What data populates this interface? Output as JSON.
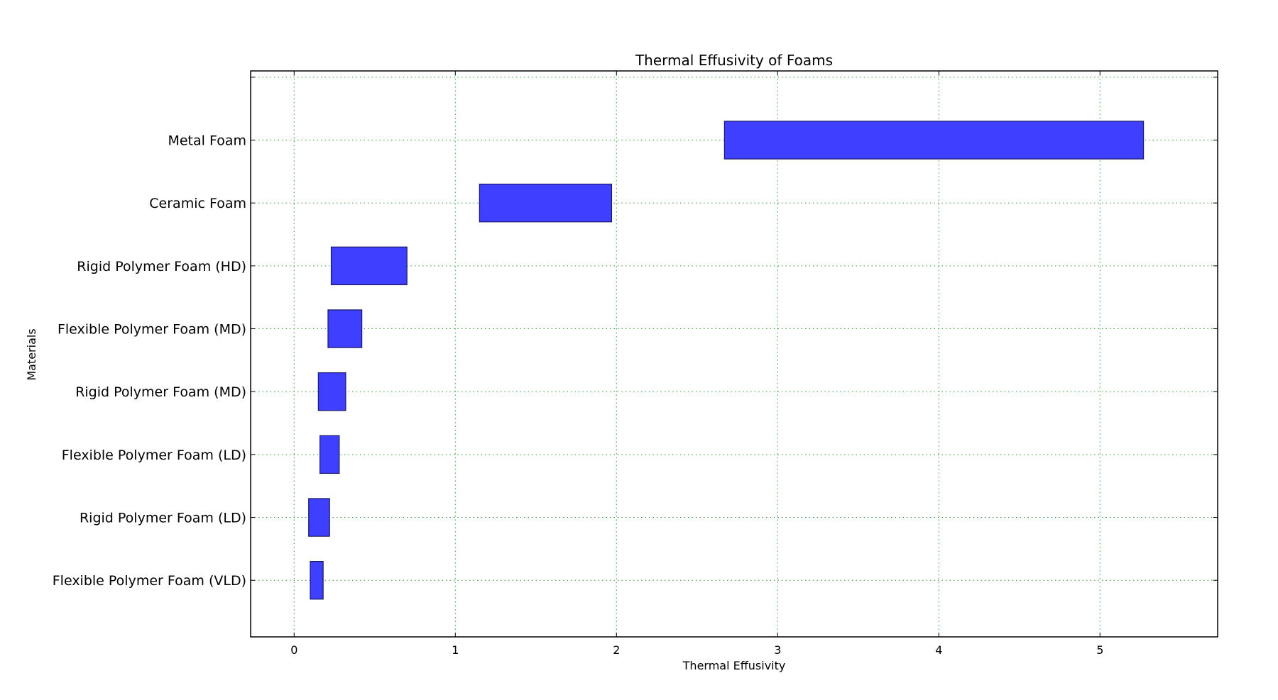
{
  "chart_data": {
    "type": "bar",
    "orientation": "horizontal",
    "bar_style": "floating-range",
    "title": "Thermal Effusivity of Foams",
    "xlabel": "Thermal Effusivity",
    "ylabel": "Materials",
    "xlim": [
      -0.27,
      5.73
    ],
    "xticks": [
      0,
      1,
      2,
      3,
      4,
      5
    ],
    "grid": true,
    "legend": "none",
    "categories": [
      "Flexible Polymer Foam (VLD)",
      "Rigid Polymer Foam (LD)",
      "Flexible Polymer Foam (LD)",
      "Rigid Polymer Foam (MD)",
      "Flexible Polymer Foam (MD)",
      "Rigid Polymer Foam (HD)",
      "Ceramic Foam",
      "Metal Foam"
    ],
    "ranges": [
      [
        0.1,
        0.18
      ],
      [
        0.09,
        0.22
      ],
      [
        0.16,
        0.28
      ],
      [
        0.15,
        0.32
      ],
      [
        0.21,
        0.42
      ],
      [
        0.23,
        0.7
      ],
      [
        1.15,
        1.97
      ],
      [
        2.67,
        5.27
      ]
    ],
    "colors": {
      "bar_fill": "#3f3fff",
      "bar_edge": "#1a1a66",
      "grid": "#2ca02c",
      "axes": "#000000"
    }
  }
}
